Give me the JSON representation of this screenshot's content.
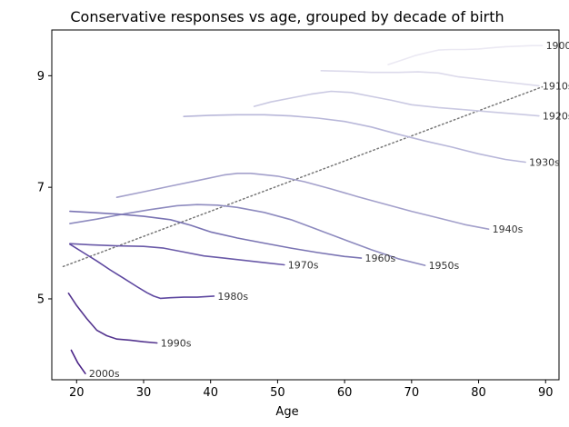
{
  "chart_data": {
    "type": "line",
    "title": "Conservative responses vs age, grouped by decade of birth",
    "xlabel": "Age",
    "ylabel": "",
    "xlim": [
      16.3,
      92.0
    ],
    "ylim": [
      3.55,
      9.82
    ],
    "xticks": [
      20,
      30,
      40,
      50,
      60,
      70,
      80,
      90
    ],
    "yticks": [
      5,
      7,
      9
    ],
    "grid": false,
    "legend": "none",
    "series": [
      {
        "name": "1900s",
        "color": "#ebe9f3",
        "x": [
          66.5,
          68.5,
          70.5,
          72.5,
          74,
          76,
          78,
          80,
          82,
          84,
          86,
          88,
          89.5
        ],
        "y": [
          9.2,
          9.28,
          9.36,
          9.42,
          9.46,
          9.47,
          9.47,
          9.48,
          9.5,
          9.52,
          9.53,
          9.54,
          9.54
        ]
      },
      {
        "name": "1910s",
        "color": "#dcdaeb",
        "x": [
          56.5,
          60,
          64,
          68,
          71,
          74,
          77,
          80,
          83,
          86,
          89
        ],
        "y": [
          9.09,
          9.08,
          9.06,
          9.06,
          9.07,
          9.05,
          8.98,
          8.94,
          8.9,
          8.86,
          8.82
        ]
      },
      {
        "name": "1920s",
        "color": "#cac9e2",
        "x": [
          46.5,
          49,
          52,
          55,
          58,
          61,
          64,
          67,
          70,
          74,
          78,
          82,
          86,
          89
        ],
        "y": [
          8.45,
          8.53,
          8.6,
          8.67,
          8.72,
          8.7,
          8.63,
          8.56,
          8.48,
          8.43,
          8.39,
          8.35,
          8.31,
          8.28
        ]
      },
      {
        "name": "1930s",
        "color": "#b8b7d9",
        "x": [
          36,
          40,
          44,
          48,
          52,
          56,
          60,
          64,
          68,
          72,
          76,
          80,
          84,
          87
        ],
        "y": [
          8.27,
          8.29,
          8.3,
          8.3,
          8.28,
          8.24,
          8.18,
          8.08,
          7.95,
          7.83,
          7.72,
          7.6,
          7.5,
          7.45
        ]
      },
      {
        "name": "1940s",
        "color": "#a3a0cb",
        "x": [
          26,
          30,
          34,
          38,
          42,
          44,
          46,
          50,
          54,
          58,
          62,
          66,
          70,
          74,
          78,
          81.5
        ],
        "y": [
          6.82,
          6.92,
          7.02,
          7.12,
          7.22,
          7.25,
          7.25,
          7.2,
          7.1,
          6.97,
          6.83,
          6.7,
          6.57,
          6.45,
          6.33,
          6.25
        ]
      },
      {
        "name": "1950s",
        "color": "#8e8bbf",
        "x": [
          19,
          23,
          27,
          31,
          35,
          38,
          41,
          44,
          48,
          52,
          56,
          60,
          64,
          68,
          72
        ],
        "y": [
          6.35,
          6.43,
          6.52,
          6.6,
          6.67,
          6.69,
          6.68,
          6.64,
          6.55,
          6.42,
          6.24,
          6.06,
          5.88,
          5.72,
          5.6
        ]
      },
      {
        "name": "1960s",
        "color": "#7a74b3",
        "x": [
          19,
          22,
          26,
          30,
          34,
          37,
          40,
          44,
          48,
          52,
          56,
          60,
          62.5
        ],
        "y": [
          6.57,
          6.55,
          6.52,
          6.48,
          6.42,
          6.32,
          6.2,
          6.09,
          6.0,
          5.91,
          5.83,
          5.76,
          5.73
        ]
      },
      {
        "name": "1970s",
        "color": "#6a5aa8",
        "x": [
          19,
          22,
          26,
          30,
          33,
          36,
          39,
          42,
          45,
          48,
          51
        ],
        "y": [
          5.99,
          5.97,
          5.95,
          5.94,
          5.91,
          5.84,
          5.77,
          5.73,
          5.69,
          5.65,
          5.61
        ]
      },
      {
        "name": "1980s",
        "color": "#5e48a0",
        "x": [
          19,
          21,
          23,
          25,
          27,
          29,
          30.5,
          31.5,
          32.5,
          34,
          36,
          38,
          40.5
        ],
        "y": [
          5.98,
          5.83,
          5.68,
          5.52,
          5.37,
          5.22,
          5.11,
          5.05,
          5.01,
          5.02,
          5.03,
          5.03,
          5.05
        ]
      },
      {
        "name": "1990s",
        "color": "#54358f",
        "x": [
          18.8,
          20,
          21.5,
          23,
          24.5,
          26,
          28,
          30,
          32
        ],
        "y": [
          5.1,
          4.88,
          4.65,
          4.44,
          4.34,
          4.28,
          4.26,
          4.23,
          4.21
        ]
      },
      {
        "name": "2000s",
        "color": "#4a2387",
        "x": [
          19.2,
          20.2,
          21.3
        ],
        "y": [
          4.08,
          3.85,
          3.66
        ]
      }
    ],
    "trend": {
      "style": "dotted",
      "color": "#777777",
      "x": [
        18,
        89.5
      ],
      "y": [
        5.58,
        8.8
      ]
    }
  }
}
